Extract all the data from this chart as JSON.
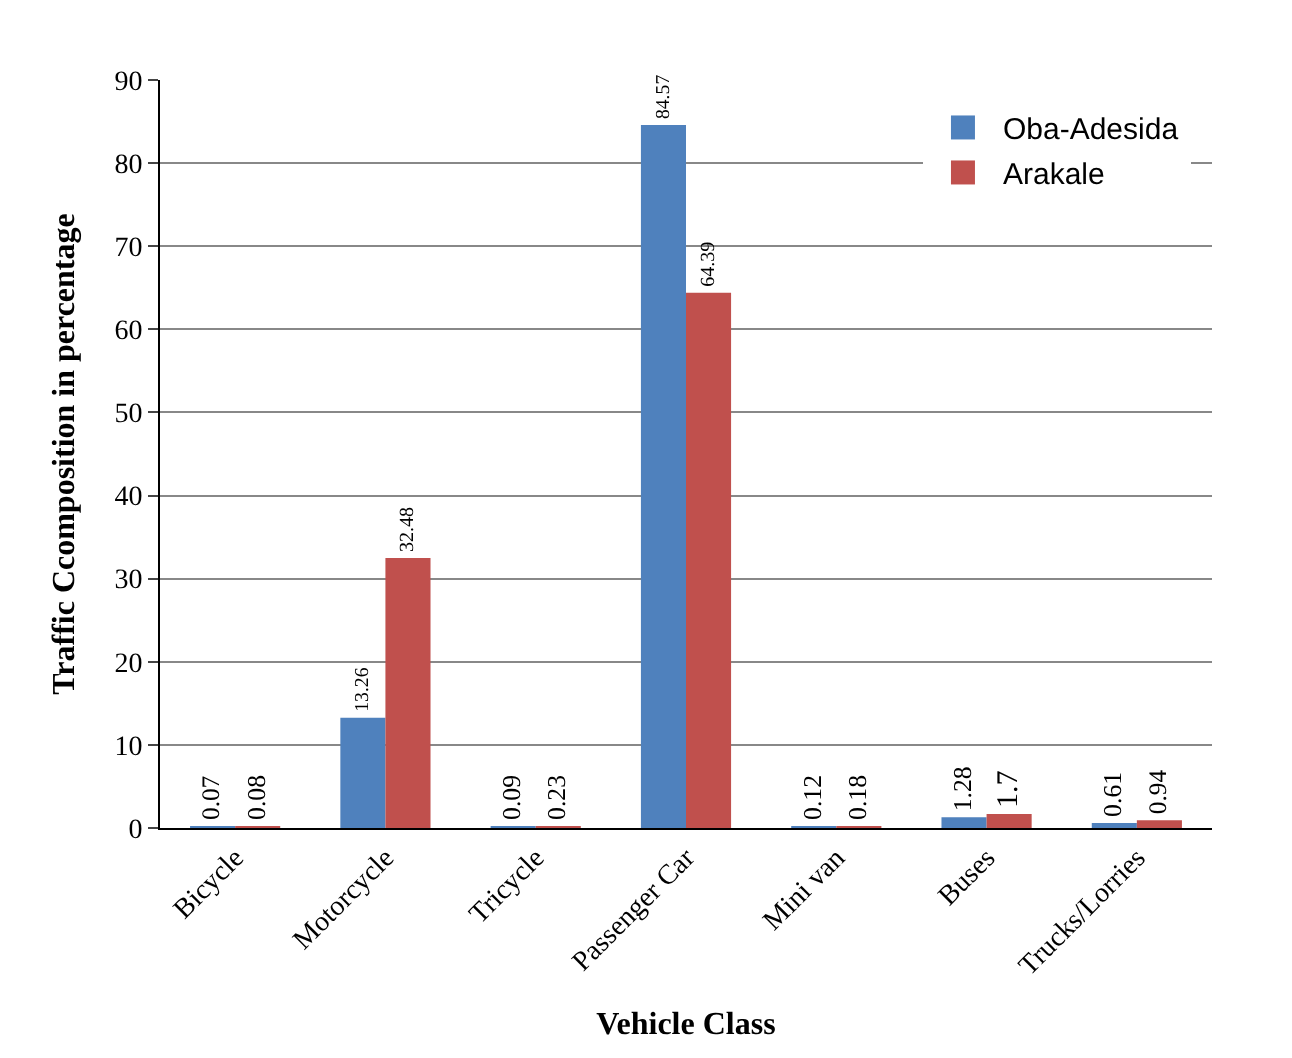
{
  "chart_data": {
    "type": "bar",
    "xlabel": "Vehicle Class",
    "ylabel": "Traffic Ccomposition in percentage",
    "categories": [
      "Bicycle",
      "Motorcycle",
      "Tricycle",
      "Passenger Car",
      "Mini van",
      "Buses",
      "Trucks/Lorries"
    ],
    "series": [
      {
        "name": "Oba-Adesida",
        "color": "#4f81bd",
        "values": [
          0.07,
          13.26,
          0.09,
          84.57,
          0.12,
          1.28,
          0.61
        ]
      },
      {
        "name": "Arakale",
        "color": "#c0504d",
        "values": [
          0.08,
          32.48,
          0.23,
          64.39,
          0.18,
          1.7,
          0.94
        ]
      }
    ],
    "ylim": [
      0,
      90
    ],
    "yticks": [
      0,
      10,
      20,
      30,
      40,
      50,
      60,
      70,
      80,
      90
    ],
    "grid": "y",
    "legend": "top right",
    "data_labels": true
  }
}
